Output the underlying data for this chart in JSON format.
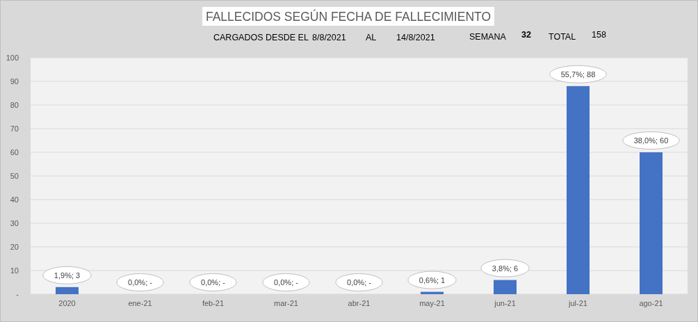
{
  "chart_data": {
    "type": "bar",
    "title": "FALLECIDOS SEGÚN FECHA DE FALLECIMIENTO",
    "annotations": [
      "CARGADOS DESDE EL",
      "8/8/2021",
      "AL",
      "14/8/2021",
      "SEMANA",
      "32",
      "TOTAL",
      "158"
    ],
    "categories": [
      "2020",
      "ene-21",
      "feb-21",
      "mar-21",
      "abr-21",
      "may-21",
      "jun-21",
      "jul-21",
      "ago-21"
    ],
    "values": [
      3,
      0,
      0,
      0,
      0,
      1,
      6,
      88,
      60
    ],
    "value_labels": [
      "1,9%; 3",
      "0,0%; -",
      "0,0%; -",
      "0,0%; -",
      "0,0%; -",
      "0,6%; 1",
      "3,8%; 6",
      "55,7%; 88",
      "38,0%; 60"
    ],
    "color": "#4472c4",
    "ylim": [
      0,
      100
    ],
    "yticks": [
      {
        "value": 0,
        "label": "-"
      },
      10,
      20,
      30,
      40,
      50,
      60,
      70,
      80,
      90,
      100
    ],
    "grid": "y"
  }
}
